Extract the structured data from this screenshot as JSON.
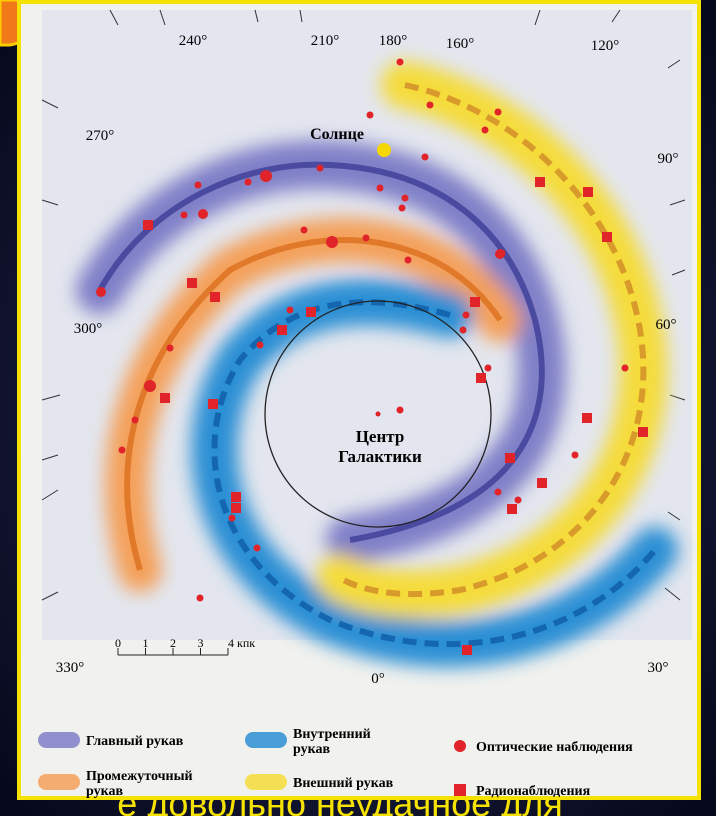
{
  "diagram": {
    "angle_labels": [
      "240°",
      "210°",
      "180°",
      "160°",
      "120°",
      "270°",
      "90°",
      "300°",
      "60°",
      "330°",
      "0°",
      "30°"
    ],
    "sun_label": "Солнце",
    "center_label": [
      "Центр",
      "Галактики"
    ],
    "scale_labels": [
      "0",
      "1",
      "2",
      "3",
      "4 кпк"
    ],
    "legend": [
      "Главный рукав",
      "Внутренний рукав",
      "Оптические наблюдения",
      "Промежуточный рукав",
      "Внешний рукав",
      "Радионаблюдения"
    ],
    "caption": "е довольно неудачное для"
  }
}
